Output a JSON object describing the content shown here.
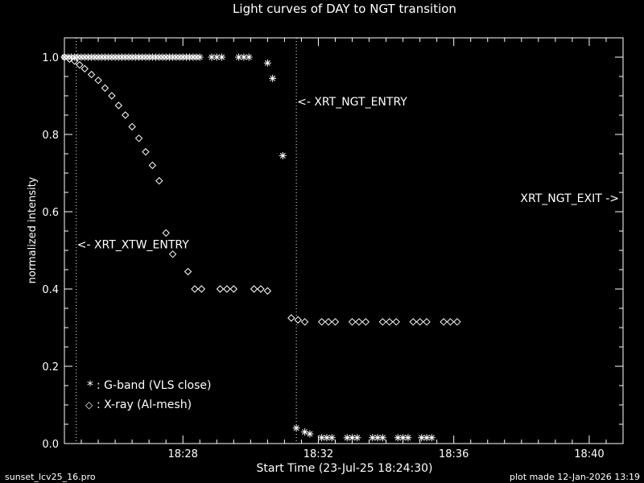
{
  "chart_data": {
    "type": "scatter",
    "title": "Light curves of DAY to NGT transition",
    "xlabel": "Start Time (23-Jul-25 18:24:30)",
    "ylabel": "normalized intensity",
    "x_units": "minutes since 18:24:30",
    "xlim": [
      0,
      16.5
    ],
    "ylim": [
      0,
      1.05
    ],
    "x_ticks": [
      {
        "value": 3.5,
        "label": "18:28"
      },
      {
        "value": 7.5,
        "label": "18:32"
      },
      {
        "value": 11.5,
        "label": "18:36"
      },
      {
        "value": 15.5,
        "label": "18:40"
      }
    ],
    "y_ticks": [
      {
        "value": 0.0,
        "label": "0.0"
      },
      {
        "value": 0.2,
        "label": "0.2"
      },
      {
        "value": 0.4,
        "label": "0.4"
      },
      {
        "value": 0.6,
        "label": "0.6"
      },
      {
        "value": 0.8,
        "label": "0.8"
      },
      {
        "value": 1.0,
        "label": "1.0"
      }
    ],
    "series": [
      {
        "name": "G-band (VLS close)",
        "marker": "asterisk",
        "x": [
          0.0,
          0.1,
          0.2,
          0.3,
          0.4,
          0.5,
          0.6,
          0.7,
          0.8,
          0.9,
          1.0,
          1.1,
          1.2,
          1.3,
          1.4,
          1.5,
          1.6,
          1.7,
          1.8,
          1.9,
          2.0,
          2.1,
          2.2,
          2.3,
          2.4,
          2.5,
          2.6,
          2.7,
          2.8,
          2.9,
          3.0,
          3.1,
          3.2,
          3.3,
          3.4,
          3.5,
          3.6,
          3.7,
          3.8,
          3.9,
          4.0,
          4.35,
          4.5,
          4.65,
          5.15,
          5.3,
          5.45,
          6.0,
          6.15,
          6.45,
          6.85,
          7.1,
          7.25,
          7.6,
          7.75,
          7.9,
          8.35,
          8.5,
          8.65,
          9.1,
          9.25,
          9.4,
          9.85,
          10.0,
          10.15,
          10.55,
          10.7,
          10.85
        ],
        "y": [
          1.0,
          1.0,
          1.0,
          1.0,
          1.0,
          1.0,
          1.0,
          1.0,
          1.0,
          1.0,
          1.0,
          1.0,
          1.0,
          1.0,
          1.0,
          1.0,
          1.0,
          1.0,
          1.0,
          1.0,
          1.0,
          1.0,
          1.0,
          1.0,
          1.0,
          1.0,
          1.0,
          1.0,
          1.0,
          1.0,
          1.0,
          1.0,
          1.0,
          1.0,
          1.0,
          1.0,
          1.0,
          1.0,
          1.0,
          1.0,
          1.0,
          1.0,
          1.0,
          1.0,
          1.0,
          1.0,
          1.0,
          0.985,
          0.945,
          0.745,
          0.04,
          0.03,
          0.025,
          0.015,
          0.015,
          0.015,
          0.015,
          0.015,
          0.015,
          0.015,
          0.015,
          0.015,
          0.015,
          0.015,
          0.015,
          0.015,
          0.015,
          0.015
        ]
      },
      {
        "name": "X-ray (Al-mesh)",
        "marker": "diamond",
        "x": [
          0.0,
          0.15,
          0.3,
          0.45,
          0.6,
          0.8,
          1.0,
          1.2,
          1.4,
          1.6,
          1.8,
          2.0,
          2.2,
          2.4,
          2.6,
          2.8,
          3.0,
          3.2,
          3.65,
          3.85,
          4.05,
          4.6,
          4.8,
          5.0,
          5.6,
          5.8,
          6.0,
          6.7,
          6.9,
          7.1,
          7.6,
          7.8,
          8.0,
          8.5,
          8.7,
          8.9,
          9.4,
          9.6,
          9.8,
          10.3,
          10.5,
          10.7,
          11.2,
          11.4,
          11.6
        ],
        "y": [
          1.0,
          0.995,
          0.99,
          0.98,
          0.97,
          0.955,
          0.94,
          0.92,
          0.9,
          0.875,
          0.85,
          0.82,
          0.79,
          0.755,
          0.72,
          0.68,
          0.545,
          0.49,
          0.445,
          0.4,
          0.4,
          0.4,
          0.4,
          0.4,
          0.4,
          0.4,
          0.395,
          0.325,
          0.32,
          0.315,
          0.315,
          0.315,
          0.315,
          0.315,
          0.315,
          0.315,
          0.315,
          0.315,
          0.315,
          0.315,
          0.315,
          0.315,
          0.315,
          0.315,
          0.315
        ]
      }
    ],
    "annotations": [
      {
        "text": "<- XRT_XTW_ENTRY",
        "x": 0.35,
        "line": true
      },
      {
        "text": "<- XRT_NGT_ENTRY",
        "x": 6.85,
        "line": true
      },
      {
        "text": "XRT_NGT_EXIT ->",
        "x": 16.5,
        "line": false
      }
    ],
    "legend": {
      "position": "bottom-left",
      "items": [
        {
          "marker_label": "*",
          "text": ": G-band (VLS close)"
        },
        {
          "marker_label": "◇",
          "text": ": X-ray (Al-mesh)"
        }
      ]
    }
  },
  "footer": {
    "left": "sunset_lcv25_16.pro",
    "right": "plot made 12-Jan-2026 13:19"
  },
  "colors": {
    "background": "#000000",
    "foreground": "#ffffff"
  }
}
